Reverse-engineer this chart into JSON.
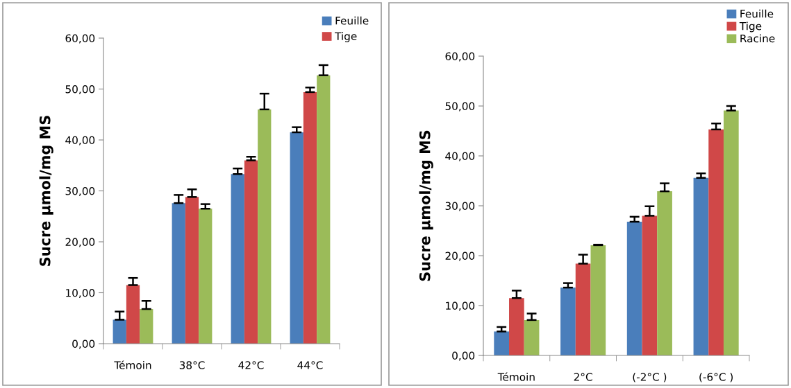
{
  "chart_data": [
    {
      "type": "bar",
      "ylabel": "Sucre µmol/mg MS",
      "categories": [
        "Témoin",
        "38°C",
        "42°C",
        "44°C"
      ],
      "ylim": [
        0,
        60
      ],
      "yticks": [
        {
          "value": 0,
          "label": "0,00"
        },
        {
          "value": 10,
          "label": "10,00"
        },
        {
          "value": 20,
          "label": "20,00"
        },
        {
          "value": 30,
          "label": "30,00"
        },
        {
          "value": 40,
          "label": "40,00"
        },
        {
          "value": 50,
          "label": "50,00"
        },
        {
          "value": 60,
          "label": "60,00"
        }
      ],
      "legend": "top right",
      "grid": false,
      "series": [
        {
          "name": "Feuille",
          "color": "#4a7ebb",
          "values": [
            4.7,
            27.6,
            33.3,
            41.5
          ],
          "errors": [
            [
              4.7,
              6.3
            ],
            [
              27.6,
              29.2
            ],
            [
              33.3,
              34.4
            ],
            [
              41.5,
              42.5
            ]
          ]
        },
        {
          "name": "Tige",
          "color": "#d04848",
          "values": [
            11.5,
            28.8,
            36.0,
            49.4
          ],
          "errors": [
            [
              11.5,
              12.9
            ],
            [
              28.8,
              30.3
            ],
            [
              36.0,
              36.7
            ],
            [
              49.4,
              50.3
            ]
          ]
        },
        {
          "color": "#9bbb59",
          "values": [
            6.8,
            26.5,
            46.0,
            52.7
          ],
          "errors": [
            [
              6.8,
              8.4
            ],
            [
              26.5,
              27.4
            ],
            [
              46.0,
              49.1
            ],
            [
              52.7,
              54.7
            ]
          ]
        }
      ]
    },
    {
      "type": "bar",
      "ylabel": "Sucre µmol/mg MS",
      "categories": [
        "Témoin",
        "2°C",
        "(-2°C )",
        "(-6°C )"
      ],
      "ylim": [
        0,
        60
      ],
      "yticks": [
        {
          "value": 0,
          "label": "0,00"
        },
        {
          "value": 10,
          "label": "10,00"
        },
        {
          "value": 20,
          "label": "20,00"
        },
        {
          "value": 30,
          "label": "30,00"
        },
        {
          "value": 40,
          "label": "40,00"
        },
        {
          "value": 50,
          "label": "50,00"
        },
        {
          "value": 60,
          "label": "60,00"
        }
      ],
      "legend": "top right",
      "grid": false,
      "series": [
        {
          "name": "Feuille",
          "color": "#4a7ebb",
          "values": [
            4.8,
            13.6,
            26.8,
            35.6
          ],
          "errors": [
            [
              4.8,
              5.7
            ],
            [
              13.6,
              14.5
            ],
            [
              26.8,
              27.8
            ],
            [
              35.6,
              36.5
            ]
          ]
        },
        {
          "name": "Tige",
          "color": "#d04848",
          "values": [
            11.5,
            18.4,
            28.0,
            45.3
          ],
          "errors": [
            [
              11.5,
              13.0
            ],
            [
              18.4,
              20.2
            ],
            [
              28.0,
              29.9
            ],
            [
              45.3,
              46.5
            ]
          ]
        },
        {
          "name": "Racine",
          "color": "#9bbb59",
          "values": [
            7.1,
            22.1,
            32.9,
            49.1
          ],
          "errors": [
            [
              7.1,
              8.4
            ],
            [
              22.1,
              22.2
            ],
            [
              32.9,
              34.5
            ],
            [
              49.1,
              50.0
            ]
          ]
        }
      ]
    }
  ]
}
